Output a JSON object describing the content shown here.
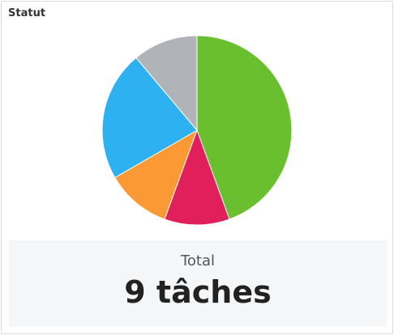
{
  "header": {
    "title": "Statut"
  },
  "chart_data": {
    "type": "pie",
    "values": [
      4,
      1,
      1,
      2,
      1
    ],
    "colors": [
      "#6abf2e",
      "#e01f5b",
      "#fb9a35",
      "#2db1f0",
      "#b0b4b9"
    ]
  },
  "summary": {
    "label": "Total",
    "value": "9 tâches"
  }
}
